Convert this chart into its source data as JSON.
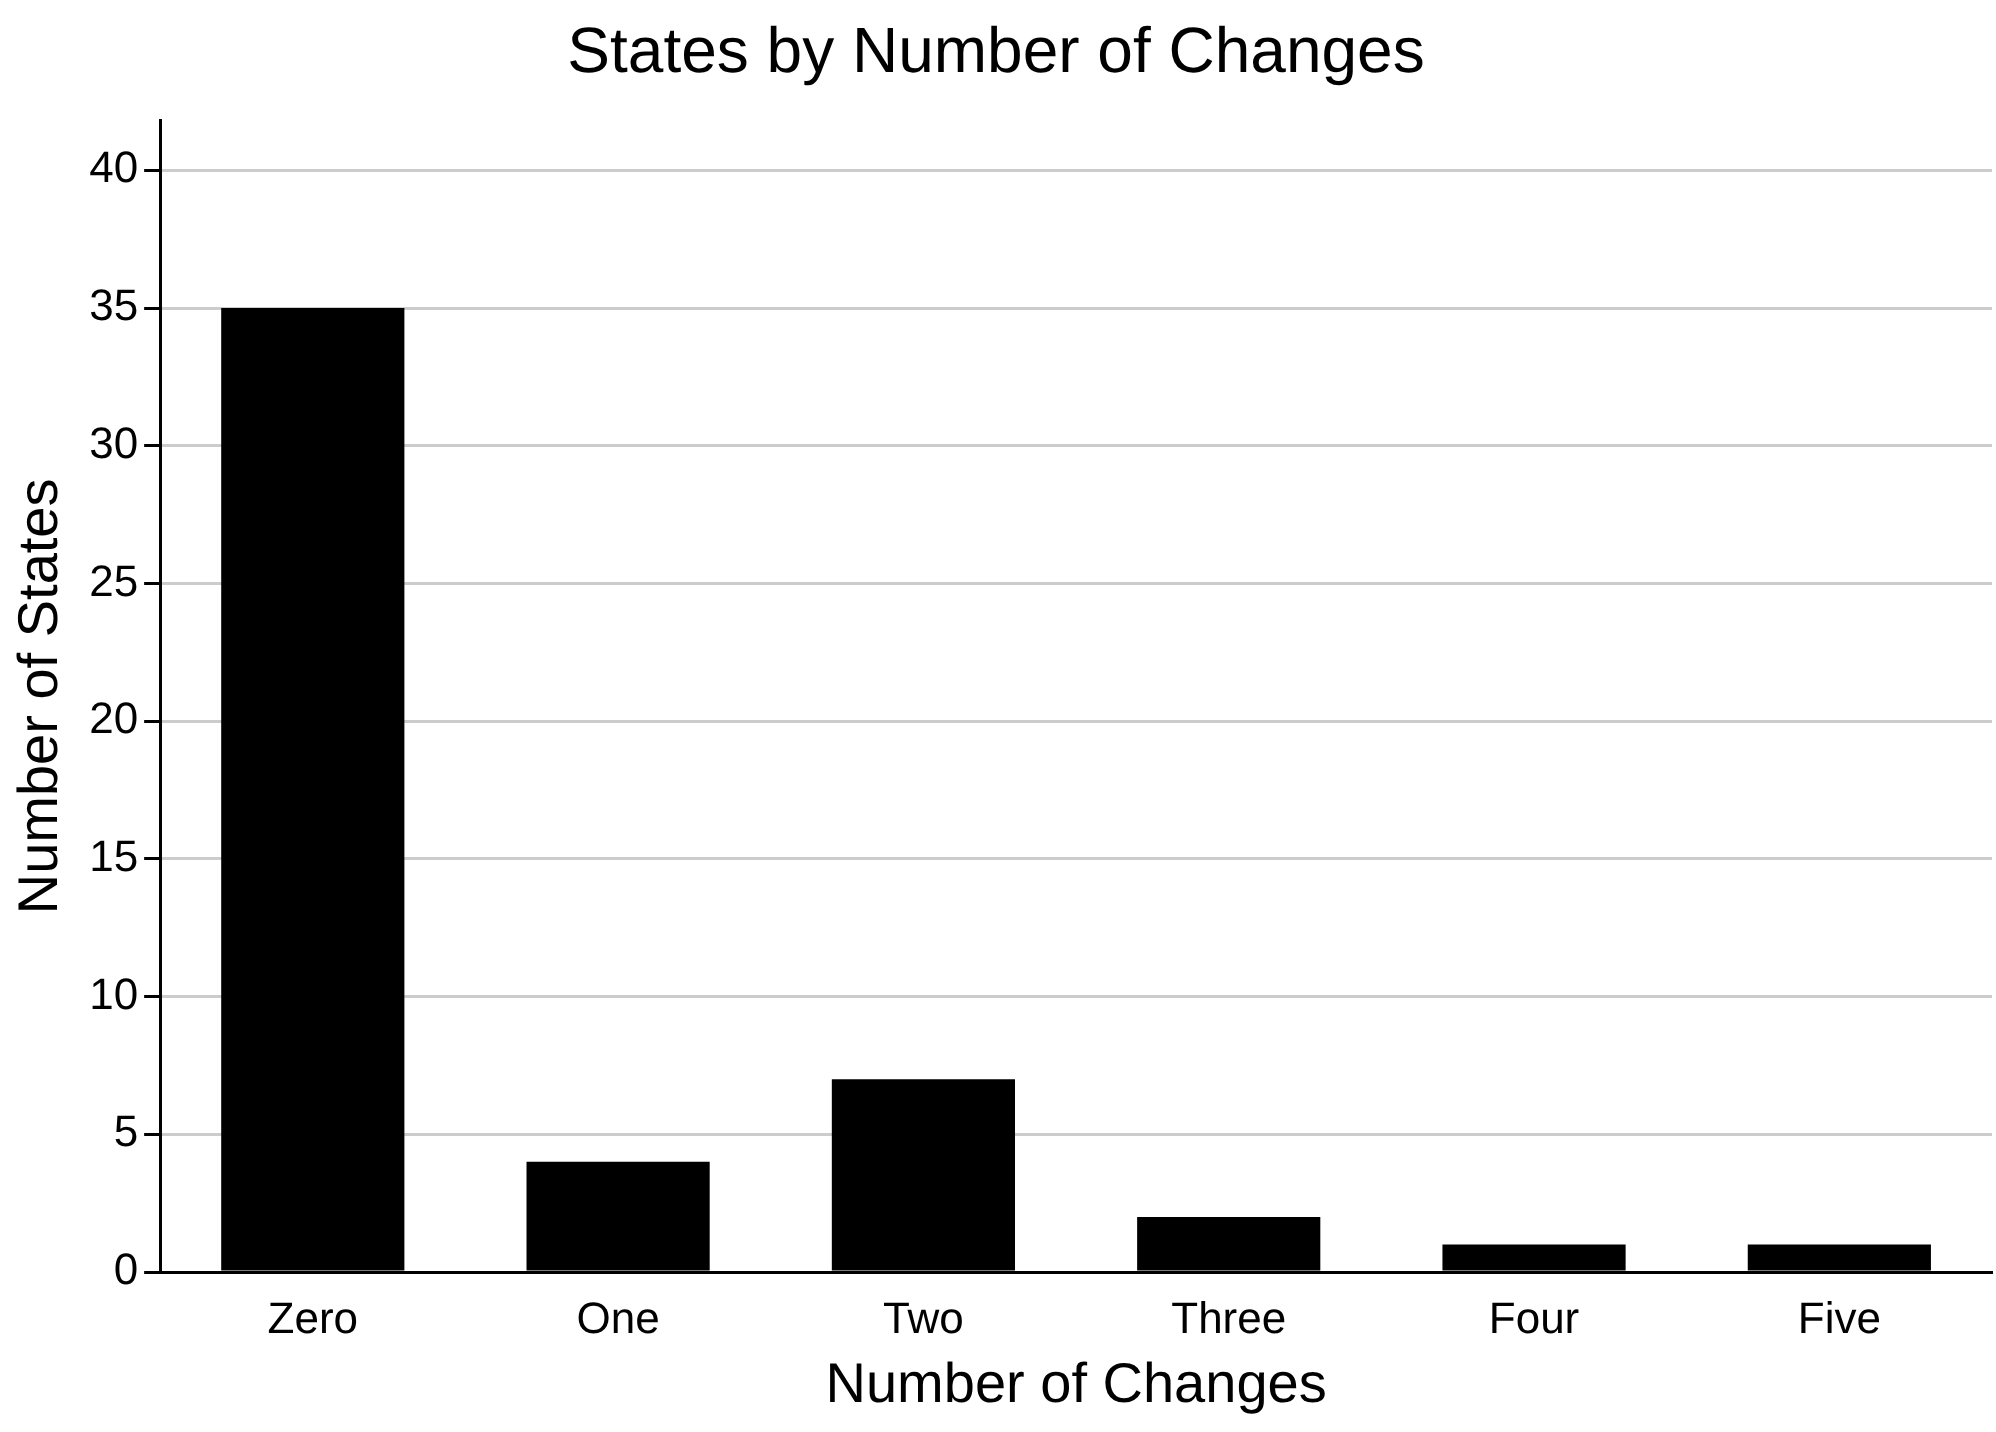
{
  "chart_data": {
    "type": "bar",
    "title": "States by Number of Changes",
    "xlabel": "Number of Changes",
    "ylabel": "Number of States",
    "categories": [
      "Zero",
      "One",
      "Two",
      "Three",
      "Four",
      "Five"
    ],
    "values": [
      35,
      4,
      7,
      2,
      1,
      1
    ],
    "color": "#000000",
    "ylim": [
      0,
      41.8
    ],
    "yticks": [
      0,
      5,
      10,
      15,
      20,
      25,
      30,
      35,
      40
    ],
    "grid": "y",
    "legend": false
  }
}
